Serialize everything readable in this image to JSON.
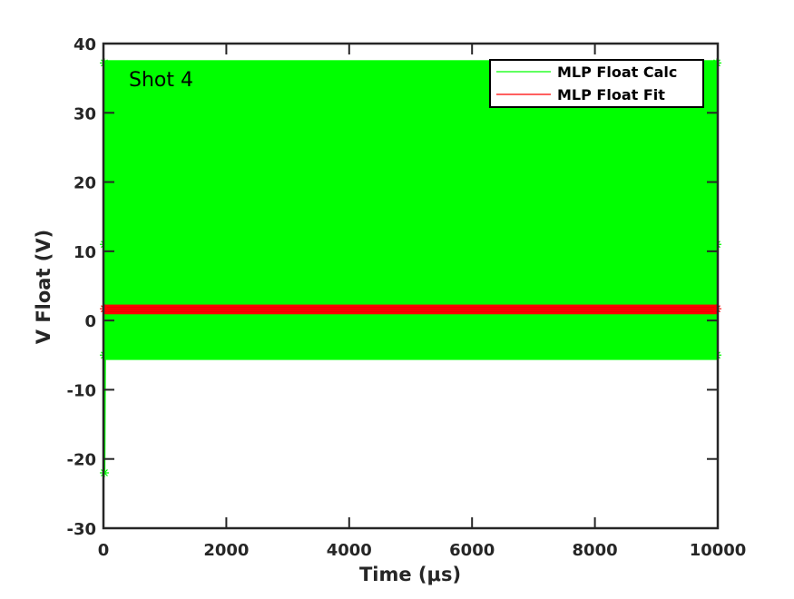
{
  "chart_data": {
    "type": "line",
    "title": "",
    "annotation": "Shot 4",
    "xlabel": "Time (μs)",
    "ylabel": "V Float (V)",
    "xlim": [
      0,
      10000
    ],
    "ylim": [
      -30,
      40
    ],
    "x_ticks": [
      0,
      2000,
      4000,
      6000,
      8000,
      10000
    ],
    "y_ticks": [
      -30,
      -20,
      -10,
      0,
      10,
      20,
      30,
      40
    ],
    "grid": false,
    "legend_position": "top-right",
    "colors": {
      "calc": "#00ff00",
      "fit": "#ff0000",
      "axis": "#262626"
    },
    "series": [
      {
        "name": "MLP Float Calc",
        "color": "#00ff00",
        "x_range": [
          0,
          10000
        ],
        "band": [
          -5.7,
          37.6
        ],
        "marker_levels": [
          37.2,
          11,
          -5
        ],
        "transient": {
          "x": [
            0,
            10,
            20,
            40
          ],
          "y": [
            -22,
            37,
            -22,
            11
          ]
        }
      },
      {
        "name": "MLP Float Fit",
        "color": "#ff0000",
        "x_range": [
          0,
          10000
        ],
        "band": [
          0.9,
          2.3
        ],
        "marker_levels": [
          1.7
        ]
      }
    ]
  }
}
